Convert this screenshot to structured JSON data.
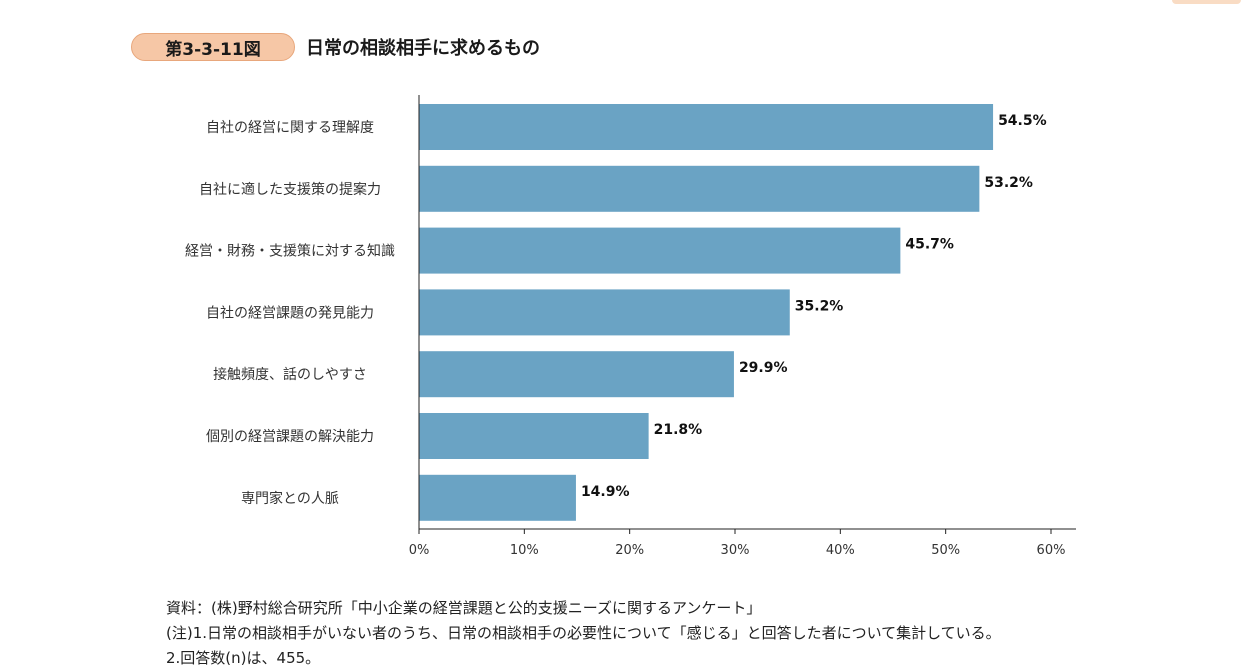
{
  "figure": {
    "badge": "第3-3-11図",
    "title": "日常の相談相手に求めるもの"
  },
  "colors": {
    "bar": "#6aa3c4",
    "badge_fill": "#f6c7a6",
    "badge_border": "#e8a77c"
  },
  "chart_data": {
    "type": "bar",
    "orientation": "horizontal",
    "title": "日常の相談相手に求めるもの",
    "xlabel": "",
    "ylabel": "",
    "xlim": [
      0,
      60
    ],
    "grid": false,
    "categories": [
      "自社の経営に関する理解度",
      "自社に適した支援策の提案力",
      "経営・財務・支援策に対する知識",
      "自社の経営課題の発見能力",
      "接触頻度、話のしやすさ",
      "個別の経営課題の解決能力",
      "専門家との人脈"
    ],
    "values": [
      54.5,
      53.2,
      45.7,
      35.2,
      29.9,
      21.8,
      14.9
    ],
    "data_labels": [
      "54.5%",
      "53.2%",
      "45.7%",
      "35.2%",
      "29.9%",
      "21.8%",
      "14.9%"
    ],
    "x_ticks": [
      0,
      10,
      20,
      30,
      40,
      50,
      60
    ],
    "x_tick_labels": [
      "0%",
      "10%",
      "20%",
      "30%",
      "40%",
      "50%",
      "60%"
    ]
  },
  "notes": {
    "source": "資料：(株)野村総合研究所「中小企業の経営課題と公的支援ニーズに関するアンケート」",
    "note1": "(注)1.日常の相談相手がいない者のうち、日常の相談相手の必要性について「感じる」と回答した者について集計している。",
    "note2": "2.回答数(n)は、455。"
  }
}
